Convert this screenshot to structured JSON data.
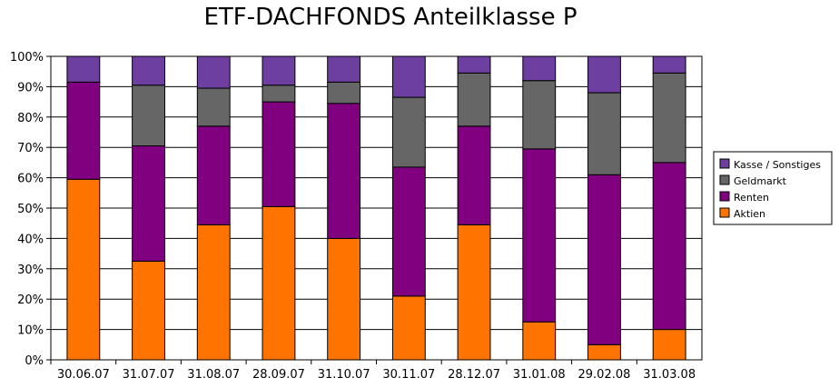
{
  "chart_data": {
    "type": "bar",
    "stacked": true,
    "percent": true,
    "title": "ETF-DACHFONDS Anteilklasse P",
    "categories": [
      "30.06.07",
      "31.07.07",
      "31.08.07",
      "28.09.07",
      "31.10.07",
      "30.11.07",
      "28.12.07",
      "31.01.08",
      "29.02.08",
      "31.03.08"
    ],
    "series": [
      {
        "name": "Aktien",
        "color": "#FF7300",
        "values": [
          59.5,
          32.5,
          44.5,
          50.5,
          40.0,
          21.0,
          44.5,
          12.5,
          5.0,
          10.0
        ]
      },
      {
        "name": "Renten",
        "color": "#800080",
        "values": [
          32.0,
          38.0,
          32.5,
          34.5,
          44.5,
          42.5,
          32.5,
          57.0,
          56.0,
          55.0
        ]
      },
      {
        "name": "Geldmarkt",
        "color": "#666666",
        "values": [
          0.0,
          20.0,
          12.5,
          5.5,
          7.0,
          23.0,
          17.5,
          22.5,
          27.0,
          29.5
        ]
      },
      {
        "name": "Kasse / Sonstiges",
        "color": "#6D3FA0",
        "values": [
          8.5,
          9.5,
          10.5,
          9.5,
          8.5,
          13.5,
          5.5,
          8.0,
          12.0,
          5.5
        ]
      }
    ],
    "ylim": [
      0,
      100
    ],
    "yticks": [
      "0%",
      "10%",
      "20%",
      "30%",
      "40%",
      "50%",
      "60%",
      "70%",
      "80%",
      "90%",
      "100%"
    ],
    "grid": true,
    "legend_position": "right",
    "legend_order": [
      "Kasse / Sonstiges",
      "Geldmarkt",
      "Renten",
      "Aktien"
    ]
  }
}
